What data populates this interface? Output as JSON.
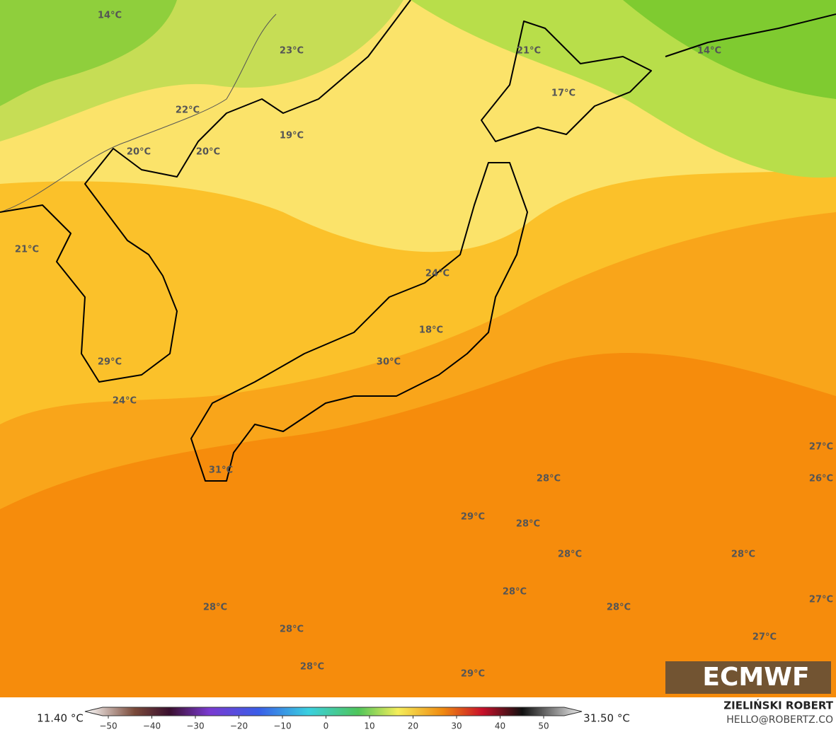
{
  "map": {
    "labels": [
      "14°C",
      "23°C",
      "21°C",
      "14°C",
      "17°C",
      "22°C",
      "19°C",
      "20°C",
      "20°C",
      "21°C",
      "24°C",
      "18°C",
      "30°C",
      "29°C",
      "24°C",
      "31°C",
      "27°C",
      "28°C",
      "26°C",
      "29°C",
      "28°C",
      "28°C",
      "28°C",
      "28°C",
      "27°C",
      "28°C",
      "28°C",
      "28°C",
      "27°C",
      "28°C",
      "29°C"
    ]
  },
  "logo": "ECMWF",
  "legend": {
    "min": "11.40 °C",
    "max": "31.50 °C",
    "ticks": [
      "−50",
      "−40",
      "−30",
      "−20",
      "−10",
      "0",
      "10",
      "20",
      "30",
      "40",
      "50"
    ]
  },
  "credit": {
    "name": "ZIELIŃSKI ROBERT",
    "contact": "HELLO@ROBERTZ.CO"
  }
}
